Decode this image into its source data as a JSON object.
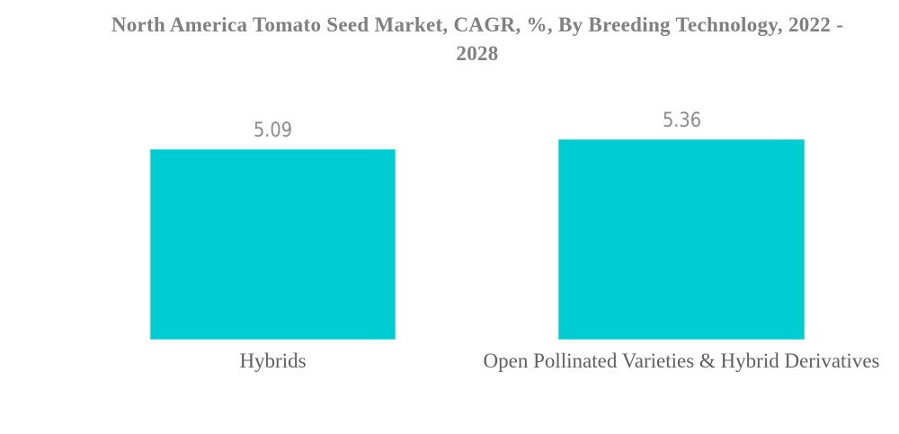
{
  "page": {
    "background_color": "#ffffff"
  },
  "chart_data": {
    "type": "bar",
    "title": "North America Tomato Seed Market, CAGR, %, By Breeding Technology, 2022 - 2028",
    "title_lines": [
      "North America Tomato Seed Market, CAGR, %, By Breeding Technology, 2022 -",
      "2028"
    ],
    "categories": [
      "Hybrids",
      "Open Pollinated Varieties & Hybrid Derivatives"
    ],
    "values": [
      5.09,
      5.36
    ],
    "value_labels": [
      "5.09",
      "5.36"
    ],
    "xlabel": "",
    "ylabel": "",
    "ylim": [
      0,
      5.75
    ],
    "grid": false,
    "legend": false,
    "axes_visible": false,
    "orientation": "vertical",
    "bar_color": "#00CDD2",
    "title_color": "#808080",
    "value_label_color": "#8b8b8b",
    "category_label_color": "#5f5f5f"
  }
}
